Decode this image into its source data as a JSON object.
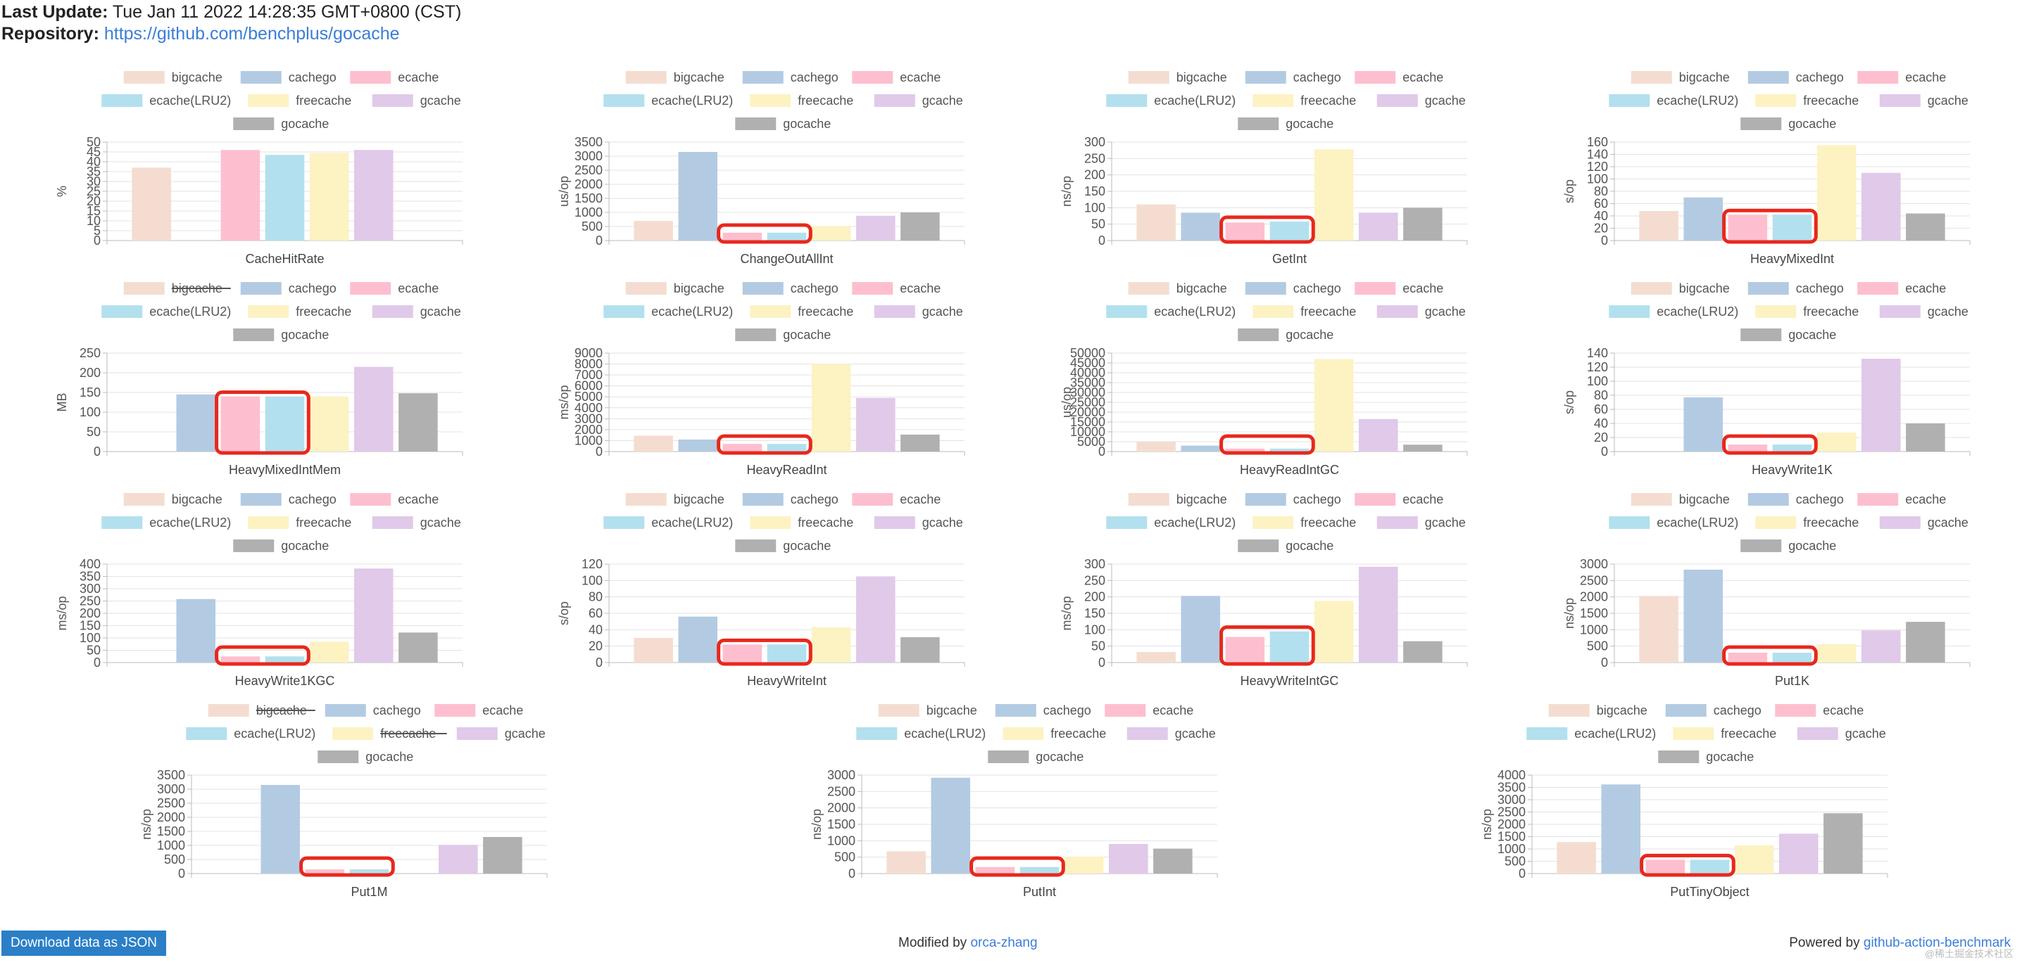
{
  "header": {
    "last_update_label": "Last Update:",
    "last_update_value": "Tue Jan 11 2022 14:28:35 GMT+0800 (CST)",
    "repo_label": "Repository:",
    "repo_url": "https://github.com/benchplus/gocache"
  },
  "series_names": [
    "bigcache",
    "cachego",
    "ecache",
    "ecache(LRU2)",
    "freecache",
    "gcache",
    "gocache"
  ],
  "series_colors": [
    "#f4ddd0",
    "#b3cbe2",
    "#fdbfcf",
    "#b3e0ee",
    "#fdf2c2",
    "#e0c9e9",
    "#b0b0b0"
  ],
  "highlight_color": "#e8281c",
  "footer": {
    "download_label": "Download data as JSON",
    "modified_text": "Modified by",
    "modified_link": "orca-zhang",
    "powered_text": "Powered by",
    "powered_link": "github-action-benchmark",
    "watermark": "@稀土掘金技术社区"
  },
  "chart_data": [
    {
      "type": "bar",
      "title": "CacheHitRate",
      "ylabel": "%",
      "ylim": [
        0,
        50
      ],
      "ticks": [
        "0",
        "5",
        "10",
        "15",
        "20",
        "25",
        "30",
        "35",
        "40",
        "45",
        "50"
      ],
      "hidden": [],
      "highlight": [],
      "categories": [
        "bigcache",
        "cachego",
        "ecache",
        "ecache(LRU2)",
        "freecache",
        "gcache",
        "gocache"
      ],
      "values": [
        37,
        null,
        46,
        43.5,
        44.5,
        46,
        null
      ]
    },
    {
      "type": "bar",
      "title": "ChangeOutAllInt",
      "ylabel": "us/op",
      "ylim": [
        0,
        3500
      ],
      "ticks": [
        "0",
        "500",
        "1000",
        "1500",
        "2000",
        "2500",
        "3000",
        "3500"
      ],
      "hidden": [],
      "highlight": [
        2,
        3
      ],
      "categories": [
        "bigcache",
        "cachego",
        "ecache",
        "ecache(LRU2)",
        "freecache",
        "gcache",
        "gocache"
      ],
      "values": [
        700,
        3150,
        280,
        280,
        520,
        880,
        1000
      ]
    },
    {
      "type": "bar",
      "title": "GetInt",
      "ylabel": "ns/op",
      "ylim": [
        0,
        300
      ],
      "ticks": [
        "0",
        "50",
        "100",
        "150",
        "200",
        "250",
        "300"
      ],
      "hidden": [],
      "highlight": [
        2,
        3
      ],
      "categories": [
        "bigcache",
        "cachego",
        "ecache",
        "ecache(LRU2)",
        "freecache",
        "gcache",
        "gocache"
      ],
      "values": [
        110,
        85,
        55,
        58,
        278,
        85,
        100
      ]
    },
    {
      "type": "bar",
      "title": "HeavyMixedInt",
      "ylabel": "s/op",
      "ylim": [
        0,
        160
      ],
      "ticks": [
        "0",
        "20",
        "40",
        "60",
        "80",
        "100",
        "120",
        "140",
        "160"
      ],
      "hidden": [],
      "highlight": [
        2,
        3
      ],
      "categories": [
        "bigcache",
        "cachego",
        "ecache",
        "ecache(LRU2)",
        "freecache",
        "gcache",
        "gocache"
      ],
      "values": [
        48,
        70,
        42,
        42,
        155,
        110,
        44
      ]
    },
    {
      "type": "bar",
      "title": "HeavyMixedIntMem",
      "ylabel": "MB",
      "ylim": [
        0,
        250
      ],
      "ticks": [
        "0",
        "50",
        "100",
        "150",
        "200",
        "250"
      ],
      "hidden": [
        0
      ],
      "highlight": [
        2,
        3
      ],
      "categories": [
        "bigcache",
        "cachego",
        "ecache",
        "ecache(LRU2)",
        "freecache",
        "gcache",
        "gocache"
      ],
      "values": [
        null,
        145,
        140,
        140,
        140,
        215,
        148
      ]
    },
    {
      "type": "bar",
      "title": "HeavyReadInt",
      "ylabel": "ms/op",
      "ylim": [
        0,
        9000
      ],
      "ticks": [
        "0",
        "1000",
        "2000",
        "3000",
        "4000",
        "5000",
        "6000",
        "7000",
        "8000",
        "9000"
      ],
      "hidden": [],
      "highlight": [
        2,
        3
      ],
      "categories": [
        "bigcache",
        "cachego",
        "ecache",
        "ecache(LRU2)",
        "freecache",
        "gcache",
        "gocache"
      ],
      "values": [
        1450,
        1100,
        700,
        700,
        8000,
        4900,
        1550
      ]
    },
    {
      "type": "bar",
      "title": "HeavyReadIntGC",
      "ylabel": "us/op",
      "ylim": [
        0,
        50000
      ],
      "ticks": [
        "0",
        "5000",
        "10000",
        "15000",
        "20000",
        "25000",
        "30000",
        "35000",
        "40000",
        "45000",
        "50000"
      ],
      "hidden": [],
      "highlight": [
        2,
        3
      ],
      "categories": [
        "bigcache",
        "cachego",
        "ecache",
        "ecache(LRU2)",
        "freecache",
        "gcache",
        "gocache"
      ],
      "values": [
        5000,
        3000,
        1500,
        1500,
        47000,
        16500,
        3500
      ]
    },
    {
      "type": "bar",
      "title": "HeavyWrite1K",
      "ylabel": "s/op",
      "ylim": [
        0,
        140
      ],
      "ticks": [
        "0",
        "20",
        "40",
        "60",
        "80",
        "100",
        "120",
        "140"
      ],
      "hidden": [],
      "highlight": [
        2,
        3
      ],
      "categories": [
        "bigcache",
        "cachego",
        "ecache",
        "ecache(LRU2)",
        "freecache",
        "gcache",
        "gocache"
      ],
      "values": [
        null,
        77,
        10,
        10,
        27,
        132,
        40
      ]
    },
    {
      "type": "bar",
      "title": "HeavyWrite1KGC",
      "ylabel": "ms/op",
      "ylim": [
        0,
        400
      ],
      "ticks": [
        "0",
        "50",
        "100",
        "150",
        "200",
        "250",
        "300",
        "350",
        "400"
      ],
      "hidden": [],
      "highlight": [
        2,
        3
      ],
      "categories": [
        "bigcache",
        "cachego",
        "ecache",
        "ecache(LRU2)",
        "freecache",
        "gcache",
        "gocache"
      ],
      "values": [
        null,
        258,
        25,
        25,
        85,
        382,
        122
      ]
    },
    {
      "type": "bar",
      "title": "HeavyWriteInt",
      "ylabel": "s/op",
      "ylim": [
        0,
        120
      ],
      "ticks": [
        "0",
        "20",
        "40",
        "60",
        "80",
        "100",
        "120"
      ],
      "hidden": [],
      "highlight": [
        2,
        3
      ],
      "categories": [
        "bigcache",
        "cachego",
        "ecache",
        "ecache(LRU2)",
        "freecache",
        "gcache",
        "gocache"
      ],
      "values": [
        30,
        56,
        22,
        22,
        43,
        105,
        31
      ]
    },
    {
      "type": "bar",
      "title": "HeavyWriteIntGC",
      "ylabel": "ms/op",
      "ylim": [
        0,
        300
      ],
      "ticks": [
        "0",
        "50",
        "100",
        "150",
        "200",
        "250",
        "300"
      ],
      "hidden": [],
      "highlight": [
        2,
        3
      ],
      "categories": [
        "bigcache",
        "cachego",
        "ecache",
        "ecache(LRU2)",
        "freecache",
        "gcache",
        "gocache"
      ],
      "values": [
        32,
        203,
        78,
        95,
        188,
        292,
        65
      ]
    },
    {
      "type": "bar",
      "title": "Put1K",
      "ylabel": "ns/op",
      "ylim": [
        0,
        3000
      ],
      "ticks": [
        "0",
        "500",
        "1000",
        "1500",
        "2000",
        "2500",
        "3000"
      ],
      "hidden": [],
      "highlight": [
        2,
        3
      ],
      "categories": [
        "bigcache",
        "cachego",
        "ecache",
        "ecache(LRU2)",
        "freecache",
        "gcache",
        "gocache"
      ],
      "values": [
        2030,
        2830,
        300,
        300,
        560,
        980,
        1240
      ]
    },
    {
      "type": "bar",
      "title": "Put1M",
      "ylabel": "ns/op",
      "ylim": [
        0,
        3500
      ],
      "ticks": [
        "0",
        "500",
        "1000",
        "1500",
        "2000",
        "2500",
        "3000",
        "3500"
      ],
      "hidden": [
        0,
        4
      ],
      "highlight": [
        2,
        3
      ],
      "categories": [
        "bigcache",
        "cachego",
        "ecache",
        "ecache(LRU2)",
        "freecache",
        "gcache",
        "gocache"
      ],
      "values": [
        null,
        3150,
        150,
        150,
        null,
        1020,
        1300
      ]
    },
    {
      "type": "bar",
      "title": "PutInt",
      "ylabel": "ns/op",
      "ylim": [
        0,
        3000
      ],
      "ticks": [
        "0",
        "500",
        "1000",
        "1500",
        "2000",
        "2500",
        "3000"
      ],
      "hidden": [],
      "highlight": [
        2,
        3
      ],
      "categories": [
        "bigcache",
        "cachego",
        "ecache",
        "ecache(LRU2)",
        "freecache",
        "gcache",
        "gocache"
      ],
      "values": [
        680,
        2920,
        200,
        200,
        520,
        900,
        760
      ]
    },
    {
      "type": "bar",
      "title": "PutTinyObject",
      "ylabel": "ns/op",
      "ylim": [
        0,
        4000
      ],
      "ticks": [
        "0",
        "500",
        "1000",
        "1500",
        "2000",
        "2500",
        "3000",
        "3500",
        "4000"
      ],
      "hidden": [],
      "highlight": [
        2,
        3
      ],
      "categories": [
        "bigcache",
        "cachego",
        "ecache",
        "ecache(LRU2)",
        "freecache",
        "gcache",
        "gocache"
      ],
      "values": [
        1280,
        3620,
        560,
        560,
        1150,
        1620,
        2450
      ]
    }
  ]
}
